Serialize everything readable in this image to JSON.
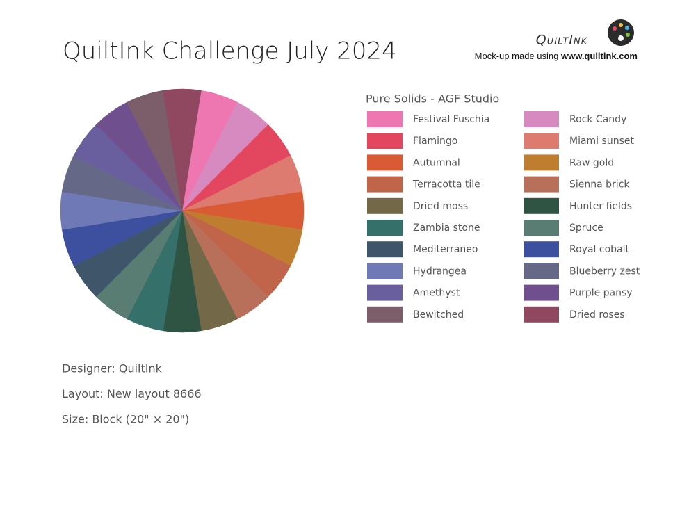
{
  "header": {
    "title": "QuiltInk Challenge July 2024",
    "logo": "QuiltInk",
    "credit_prefix": "Mock-up made using",
    "credit_site": "www.quiltink.com"
  },
  "palette": {
    "title": "Pure Solids - AGF Studio",
    "fabrics": [
      {
        "name": "Festival Fuschia",
        "color": "#ef77b1"
      },
      {
        "name": "Rock Candy",
        "color": "#d68ac0"
      },
      {
        "name": "Flamingo",
        "color": "#e2475f"
      },
      {
        "name": "Miami sunset",
        "color": "#dd7b70"
      },
      {
        "name": "Autumnal",
        "color": "#d95b35"
      },
      {
        "name": "Raw gold",
        "color": "#bf7e2f"
      },
      {
        "name": "Terracotta tile",
        "color": "#c0654a"
      },
      {
        "name": "Sienna brick",
        "color": "#b9705a"
      },
      {
        "name": "Dried moss",
        "color": "#736948"
      },
      {
        "name": "Hunter fields",
        "color": "#2f5444"
      },
      {
        "name": "Zambia stone",
        "color": "#35706a"
      },
      {
        "name": "Spruce",
        "color": "#5a7d73"
      },
      {
        "name": "Mediterraneo",
        "color": "#3f566a"
      },
      {
        "name": "Royal cobalt",
        "color": "#3d50a0"
      },
      {
        "name": "Hydrangea",
        "color": "#6e79b5"
      },
      {
        "name": "Blueberry zest",
        "color": "#666888"
      },
      {
        "name": "Amethyst",
        "color": "#695f9e"
      },
      {
        "name": "Purple pansy",
        "color": "#704f8f"
      },
      {
        "name": "Bewitched",
        "color": "#7b5e6a"
      },
      {
        "name": "Dried roses",
        "color": "#8f4860"
      }
    ]
  },
  "details": [
    "Designer: QuiltInk",
    "Layout: New layout 8666",
    "Size: Block (20\" × 20\")"
  ]
}
